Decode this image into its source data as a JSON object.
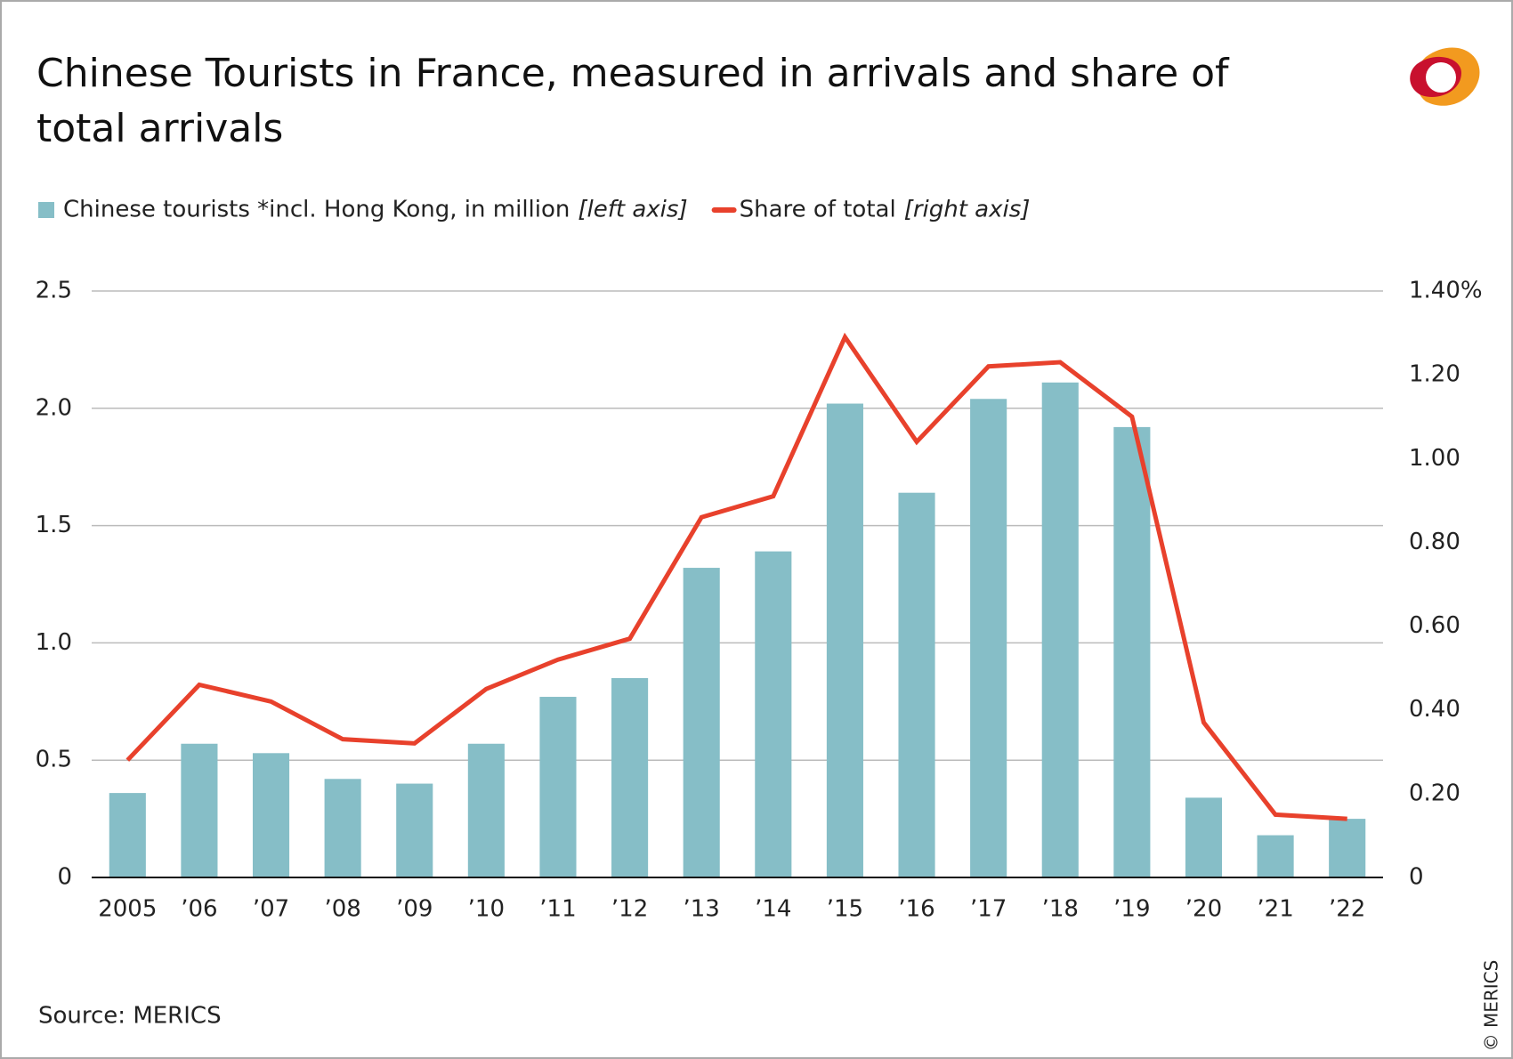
{
  "chart_data": {
    "type": "bar_line",
    "title": "Chinese Tourists in France, measured in arrivals and share of total arrivals",
    "categories": [
      "2005",
      "’06",
      "’07",
      "’08",
      "’09",
      "’10",
      "’11",
      "’12",
      "’13",
      "’14",
      "’15",
      "’16",
      "’17",
      "’18",
      "’19",
      "’20",
      "’21",
      "’22"
    ],
    "series": [
      {
        "name": "Chinese tourists *incl. Hong Kong, in million",
        "legend_note": "[left axis]",
        "type": "bar",
        "color": "#86bec7",
        "values": [
          0.36,
          0.57,
          0.53,
          0.42,
          0.4,
          0.57,
          0.77,
          0.85,
          1.32,
          1.39,
          2.02,
          1.64,
          2.04,
          2.11,
          1.92,
          0.34,
          0.18,
          0.25
        ]
      },
      {
        "name": "Share of total",
        "legend_note": "[right axis]",
        "type": "line",
        "axis": "y2",
        "color": "#e8412c",
        "values": [
          0.28,
          0.46,
          0.42,
          0.33,
          0.32,
          0.45,
          0.52,
          0.57,
          0.86,
          0.91,
          1.29,
          1.04,
          1.22,
          1.23,
          1.1,
          0.37,
          0.15,
          0.14
        ]
      }
    ],
    "ylim": [
      0,
      2.5
    ],
    "yticks": [
      0,
      0.5,
      {
        "value": 1,
        "label": "1.0"
      },
      1.5,
      {
        "value": 2,
        "label": "2.0"
      },
      2.5
    ],
    "y2lim": [
      0,
      1.4
    ],
    "y2ticks": [
      0,
      {
        "value": 0.2,
        "label": "0.20"
      },
      {
        "value": 0.4,
        "label": "0.40"
      },
      {
        "value": 0.6,
        "label": "0.60"
      },
      {
        "value": 0.8,
        "label": "0.80"
      },
      {
        "value": 1,
        "label": "1.00"
      },
      {
        "value": 1.2,
        "label": "1.20"
      },
      {
        "value": 1.4,
        "label": "1.40%"
      }
    ],
    "grid": true,
    "source": "Source: MERICS",
    "copyright": "© MERICS"
  }
}
